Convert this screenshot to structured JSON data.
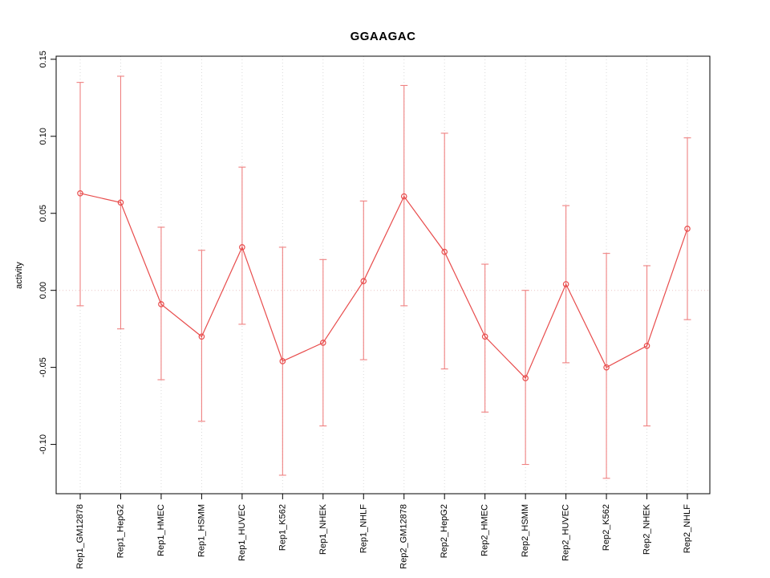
{
  "chart_data": {
    "type": "line",
    "title": "GGAAGAC",
    "xlabel": "",
    "ylabel": "activity",
    "categories": [
      "Rep1_GM12878",
      "Rep1_HepG2",
      "Rep1_HMEC",
      "Rep1_HSMM",
      "Rep1_HUVEC",
      "Rep1_K562",
      "Rep1_NHEK",
      "Rep1_NHLF",
      "Rep2_GM12878",
      "Rep2_HepG2",
      "Rep2_HMEC",
      "Rep2_HSMM",
      "Rep2_HUVEC",
      "Rep2_K562",
      "Rep2_NHEK",
      "Rep2_NHLF"
    ],
    "series": [
      {
        "name": "activity",
        "values": [
          0.063,
          0.057,
          -0.009,
          -0.03,
          0.028,
          -0.046,
          -0.034,
          0.006,
          0.061,
          0.025,
          -0.03,
          -0.057,
          0.004,
          -0.05,
          -0.036,
          0.04
        ],
        "upper": [
          0.135,
          0.139,
          0.041,
          0.026,
          0.08,
          0.028,
          0.02,
          0.058,
          0.133,
          0.102,
          0.017,
          0.0,
          0.055,
          0.024,
          0.016,
          0.099
        ],
        "lower": [
          -0.01,
          -0.025,
          -0.058,
          -0.085,
          -0.022,
          -0.12,
          -0.088,
          -0.045,
          -0.01,
          -0.051,
          -0.079,
          -0.113,
          -0.047,
          -0.122,
          -0.088,
          -0.019
        ]
      }
    ],
    "yticks": [
      -0.1,
      -0.05,
      0.0,
      0.05,
      0.1,
      0.15
    ],
    "ylim": [
      -0.132,
      0.152
    ],
    "grid": "vertical dotted gridlines per category, dotted horizontal line at y=0",
    "legend_position": "none",
    "colors": {
      "line": "#e84c4c",
      "point": "#e84c4c",
      "error_bar": "#ef8181",
      "grid": "#d9d9d9",
      "zero_line": "#e9c6c6",
      "axis": "#000000"
    }
  }
}
